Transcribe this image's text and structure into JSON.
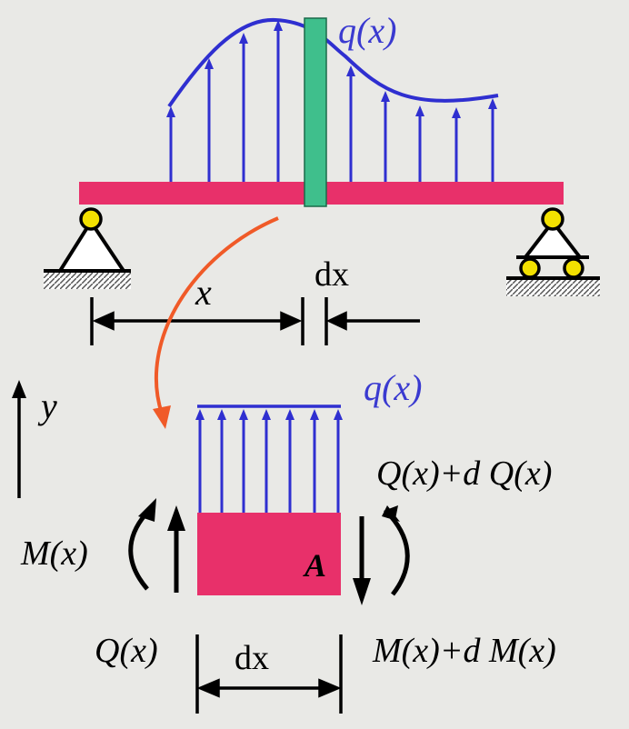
{
  "labels": {
    "q_top": "q(x)",
    "q_element": "q(x)",
    "x_label": "x",
    "dx_top": "dx",
    "y_axis": "y",
    "shear_right": "Q(x)+d Q(x)",
    "moment_left": "M(x)",
    "element_name": "A",
    "shear_left": "Q(x)",
    "dx_bottom": "dx",
    "moment_right": "M(x)+d M(x)"
  },
  "colors": {
    "beam": "#e8306a",
    "element_strip": "#3fbf8c",
    "load": "#2f2fd0",
    "curved_arrow": "#f05a28",
    "ink": "#000000",
    "support_node": "#f2e000"
  }
}
